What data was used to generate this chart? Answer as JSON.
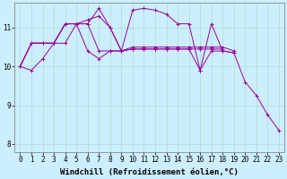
{
  "background_color": "#cceeff",
  "grid_color": "#aaddcc",
  "line_color": "#990099",
  "xlabel": "Windchill (Refroidissement éolien,°C)",
  "xlabel_fontsize": 6.5,
  "tick_fontsize": 5.5,
  "xlim": [
    -0.5,
    23.5
  ],
  "ylim": [
    7.8,
    11.65
  ],
  "yticks": [
    8,
    9,
    10,
    11
  ],
  "xticks": [
    0,
    1,
    2,
    3,
    4,
    5,
    6,
    7,
    8,
    9,
    10,
    11,
    12,
    13,
    14,
    15,
    16,
    17,
    18,
    19,
    20,
    21,
    22,
    23
  ],
  "series_data": {
    "s1_x": [
      0,
      1,
      2,
      3,
      4,
      5,
      6,
      7,
      8,
      9,
      10,
      11,
      12,
      13,
      14,
      15,
      16,
      17,
      18,
      19
    ],
    "s1_y": [
      10.0,
      9.9,
      10.2,
      10.6,
      10.6,
      11.1,
      11.2,
      11.3,
      11.0,
      10.4,
      10.5,
      10.5,
      10.5,
      10.5,
      10.5,
      10.5,
      10.5,
      10.5,
      10.5,
      10.4
    ],
    "s2_x": [
      0,
      1,
      2,
      3,
      4,
      5,
      6,
      7,
      8,
      9,
      10,
      11,
      12,
      13,
      14,
      15,
      16,
      17,
      18,
      19
    ],
    "s2_y": [
      10.0,
      10.6,
      10.6,
      10.6,
      11.1,
      11.1,
      11.1,
      11.5,
      11.0,
      10.4,
      11.45,
      11.5,
      11.45,
      11.35,
      11.1,
      11.1,
      9.9,
      11.1,
      10.4,
      10.35
    ],
    "s3_x": [
      0,
      1,
      2,
      3,
      4,
      5,
      6,
      7,
      8,
      9,
      10,
      11,
      12,
      13,
      14,
      15,
      16,
      17,
      18
    ],
    "s3_y": [
      10.0,
      10.6,
      10.6,
      10.6,
      11.1,
      11.1,
      11.1,
      10.4,
      10.4,
      10.4,
      10.45,
      10.45,
      10.45,
      10.45,
      10.45,
      10.45,
      10.45,
      10.45,
      10.45
    ],
    "s4_x": [
      0,
      1,
      2,
      3,
      4,
      5,
      6,
      7,
      8,
      9,
      10,
      11,
      12,
      13,
      14,
      15,
      16,
      17,
      18,
      19,
      20,
      21,
      22,
      23
    ],
    "s4_y": [
      10.0,
      10.6,
      10.6,
      10.6,
      11.1,
      11.1,
      10.4,
      10.2,
      10.4,
      10.4,
      10.45,
      10.45,
      10.45,
      10.45,
      10.45,
      10.45,
      9.9,
      10.4,
      10.4,
      10.35,
      9.6,
      9.25,
      8.75,
      8.35
    ]
  }
}
